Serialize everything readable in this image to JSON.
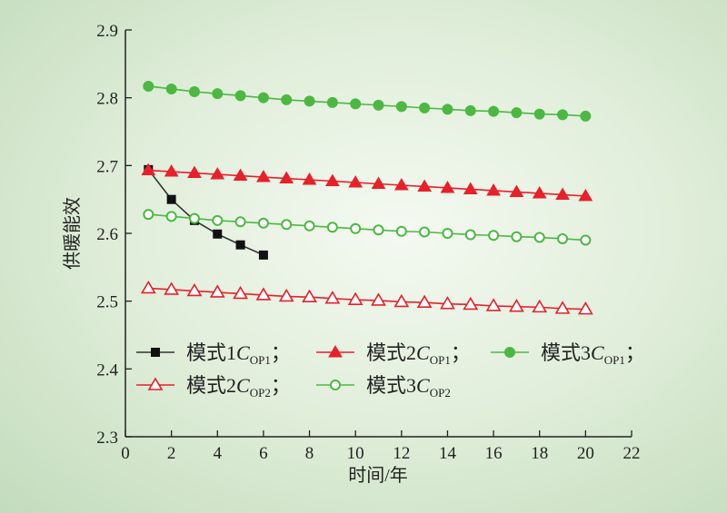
{
  "chart_data": {
    "type": "line",
    "xlabel": "时间/年",
    "ylabel": "供暖能效",
    "xlim": [
      0,
      22
    ],
    "ylim": [
      2.3,
      2.9
    ],
    "xticks": [
      0,
      2,
      4,
      6,
      8,
      10,
      12,
      14,
      16,
      18,
      20,
      22
    ],
    "yticks": [
      2.3,
      2.4,
      2.5,
      2.6,
      2.7,
      2.8,
      2.9
    ],
    "grid": false,
    "legend_position": "bottom-left",
    "series": [
      {
        "name": "模式1C_OP1;",
        "legend_main": "模式1",
        "legend_c": "C",
        "legend_sub": "OP1",
        "legend_tail": "；",
        "color": "#333333",
        "marker": "square-filled",
        "x": [
          1,
          2,
          3,
          4,
          5,
          6
        ],
        "y": [
          2.694,
          2.65,
          2.619,
          2.599,
          2.583,
          2.568
        ]
      },
      {
        "name": "模式2C_OP1;",
        "legend_main": "模式2",
        "legend_c": "C",
        "legend_sub": "OP1",
        "legend_tail": "；",
        "color": "#e8202a",
        "marker": "triangle-filled",
        "x": [
          1,
          2,
          3,
          4,
          5,
          6,
          7,
          8,
          9,
          10,
          11,
          12,
          13,
          14,
          15,
          16,
          17,
          18,
          19,
          20
        ],
        "y": [
          2.693,
          2.691,
          2.689,
          2.687,
          2.685,
          2.683,
          2.681,
          2.679,
          2.677,
          2.675,
          2.673,
          2.671,
          2.669,
          2.667,
          2.665,
          2.663,
          2.661,
          2.659,
          2.657,
          2.655
        ]
      },
      {
        "name": "模式3C_OP1;",
        "legend_main": "模式3",
        "legend_c": "C",
        "legend_sub": "OP1",
        "legend_tail": "；",
        "color": "#4cb842",
        "marker": "circle-filled",
        "x": [
          1,
          2,
          3,
          4,
          5,
          6,
          7,
          8,
          9,
          10,
          11,
          12,
          13,
          14,
          15,
          16,
          17,
          18,
          19,
          20
        ],
        "y": [
          2.817,
          2.813,
          2.809,
          2.806,
          2.803,
          2.8,
          2.797,
          2.795,
          2.793,
          2.791,
          2.789,
          2.787,
          2.785,
          2.783,
          2.781,
          2.78,
          2.778,
          2.776,
          2.775,
          2.773
        ]
      },
      {
        "name": "模式2C_OP2;",
        "legend_main": "模式2",
        "legend_c": "C",
        "legend_sub": "OP2",
        "legend_tail": "；",
        "color": "#e8202a",
        "marker": "triangle-open",
        "x": [
          1,
          2,
          3,
          4,
          5,
          6,
          7,
          8,
          9,
          10,
          11,
          12,
          13,
          14,
          15,
          16,
          17,
          18,
          19,
          20
        ],
        "y": [
          2.519,
          2.517,
          2.515,
          2.513,
          2.511,
          2.509,
          2.507,
          2.506,
          2.504,
          2.502,
          2.501,
          2.499,
          2.498,
          2.496,
          2.495,
          2.493,
          2.492,
          2.491,
          2.489,
          2.488
        ]
      },
      {
        "name": "模式3C_OP2",
        "legend_main": "模式3",
        "legend_c": "C",
        "legend_sub": "OP2",
        "legend_tail": "",
        "color": "#4cb842",
        "marker": "circle-open",
        "x": [
          1,
          2,
          3,
          4,
          5,
          6,
          7,
          8,
          9,
          10,
          11,
          12,
          13,
          14,
          15,
          16,
          17,
          18,
          19,
          20
        ],
        "y": [
          2.628,
          2.625,
          2.622,
          2.619,
          2.617,
          2.615,
          2.613,
          2.611,
          2.609,
          2.607,
          2.605,
          2.603,
          2.602,
          2.6,
          2.598,
          2.597,
          2.595,
          2.594,
          2.592,
          2.59
        ]
      }
    ]
  }
}
